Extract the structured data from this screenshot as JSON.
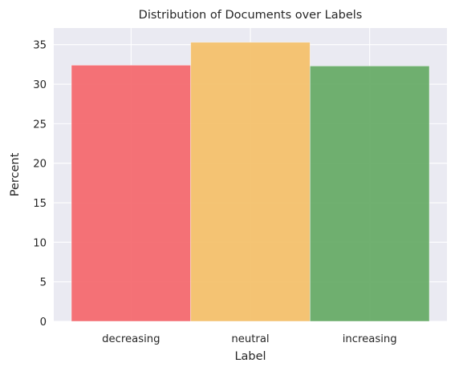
{
  "chart_data": {
    "type": "bar",
    "title": "Distribution of Documents over Labels",
    "xlabel": "Label",
    "ylabel": "Percent",
    "categories": [
      "decreasing",
      "neutral",
      "increasing"
    ],
    "values": [
      32.4,
      35.3,
      32.3
    ],
    "colors": [
      "#f4676d",
      "#f4c069",
      "#65aa65"
    ],
    "ylim": [
      0,
      37.1
    ],
    "yticks": [
      0,
      5,
      10,
      15,
      20,
      25,
      30,
      35
    ],
    "grid": true,
    "background": "#eaeaf2",
    "legend": "none"
  }
}
